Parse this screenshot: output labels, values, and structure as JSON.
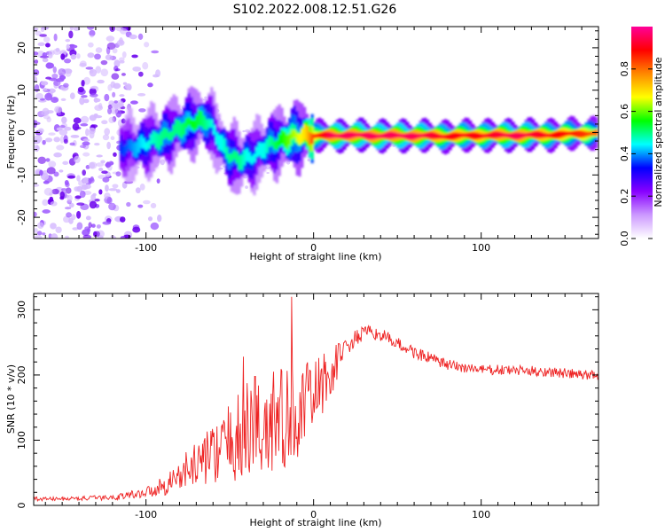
{
  "title": "S102.2022.008.12.51.G26",
  "colors": {
    "snr_line": "#ee2222",
    "axis": "#000000",
    "scatter_noise": "#b070ff"
  },
  "chart_data": [
    {
      "type": "heatmap",
      "xlabel": "Height of straight line (km)",
      "ylabel": "Frequency (Hz)",
      "xlim": [
        -167,
        170
      ],
      "ylim": [
        -25,
        25
      ],
      "x_ticks": [
        -100,
        0,
        100
      ],
      "y_ticks": [
        -20,
        -10,
        0,
        10,
        20
      ],
      "colorbar": {
        "label": "Normalized spectral amplitude",
        "range": [
          0,
          1
        ],
        "ticks": [
          0.0,
          0.2,
          0.4,
          0.6,
          0.8
        ],
        "tick_labels": [
          "0.0",
          "0.2",
          "0.4",
          "0.6",
          "0.8"
        ],
        "colormap": [
          "#ffffff",
          "#cc99ff",
          "#8800ff",
          "#0000ff",
          "#00ffff",
          "#00ff00",
          "#ffff00",
          "#ff8800",
          "#ff0000",
          "#ff0099"
        ]
      },
      "ridge": {
        "x": [
          -115,
          -108,
          -100,
          -90,
          -80,
          -72,
          -65,
          -60,
          -55,
          -50,
          -45,
          -40,
          -35,
          -30,
          -25,
          -20,
          -15,
          -10,
          -5,
          0,
          10,
          20,
          40,
          60,
          80,
          100,
          120,
          140,
          160,
          170
        ],
        "y": [
          -3.5,
          -3.5,
          -2.5,
          -1.0,
          1.0,
          2.5,
          3.0,
          1.0,
          -3.0,
          -5.5,
          -6.5,
          -6.0,
          -5.5,
          -3.5,
          -2.5,
          -2.0,
          -1.2,
          -0.8,
          -0.6,
          -0.8,
          -0.6,
          -0.6,
          -0.7,
          -0.7,
          -0.8,
          -0.6,
          -0.6,
          -0.5,
          -0.2,
          0.0
        ],
        "amplitude": [
          0.35,
          0.4,
          0.45,
          0.5,
          0.5,
          0.55,
          0.5,
          0.45,
          0.45,
          0.5,
          0.5,
          0.45,
          0.45,
          0.45,
          0.5,
          0.55,
          0.6,
          0.65,
          0.7,
          0.85,
          0.95,
          0.95,
          0.95,
          0.95,
          0.9,
          0.9,
          0.95,
          0.9,
          0.85,
          0.8
        ]
      },
      "noise_region_x": [
        -167,
        -110
      ]
    },
    {
      "type": "line",
      "xlabel": "Height of straight line (km)",
      "ylabel": "SNR (10 * v/v)",
      "xlim": [
        -167,
        170
      ],
      "ylim": [
        0,
        325
      ],
      "x_ticks": [
        -100,
        0,
        100
      ],
      "y_ticks": [
        0,
        100,
        200,
        300
      ],
      "envelope": {
        "x": [
          -167,
          -150,
          -120,
          -100,
          -90,
          -80,
          -70,
          -60,
          -50,
          -40,
          -30,
          -20,
          -10,
          0,
          10,
          20,
          30,
          40,
          50,
          60,
          70,
          80,
          100,
          120,
          140,
          160,
          170
        ],
        "y": [
          10,
          10,
          12,
          20,
          30,
          45,
          65,
          80,
          95,
          110,
          120,
          125,
          140,
          170,
          200,
          245,
          265,
          262,
          248,
          235,
          225,
          215,
          208,
          207,
          205,
          200,
          200
        ],
        "noise": [
          3,
          3,
          4,
          8,
          15,
          25,
          35,
          45,
          60,
          80,
          85,
          90,
          70,
          55,
          40,
          15,
          12,
          10,
          10,
          10,
          9,
          9,
          8,
          8,
          8,
          8,
          8
        ]
      },
      "spikes": [
        {
          "x": -42,
          "y": 228
        },
        {
          "x": -35,
          "y": 198
        },
        {
          "x": -24,
          "y": 205
        },
        {
          "x": -13,
          "y": 320
        },
        {
          "x": 15,
          "y": 248
        }
      ]
    }
  ]
}
